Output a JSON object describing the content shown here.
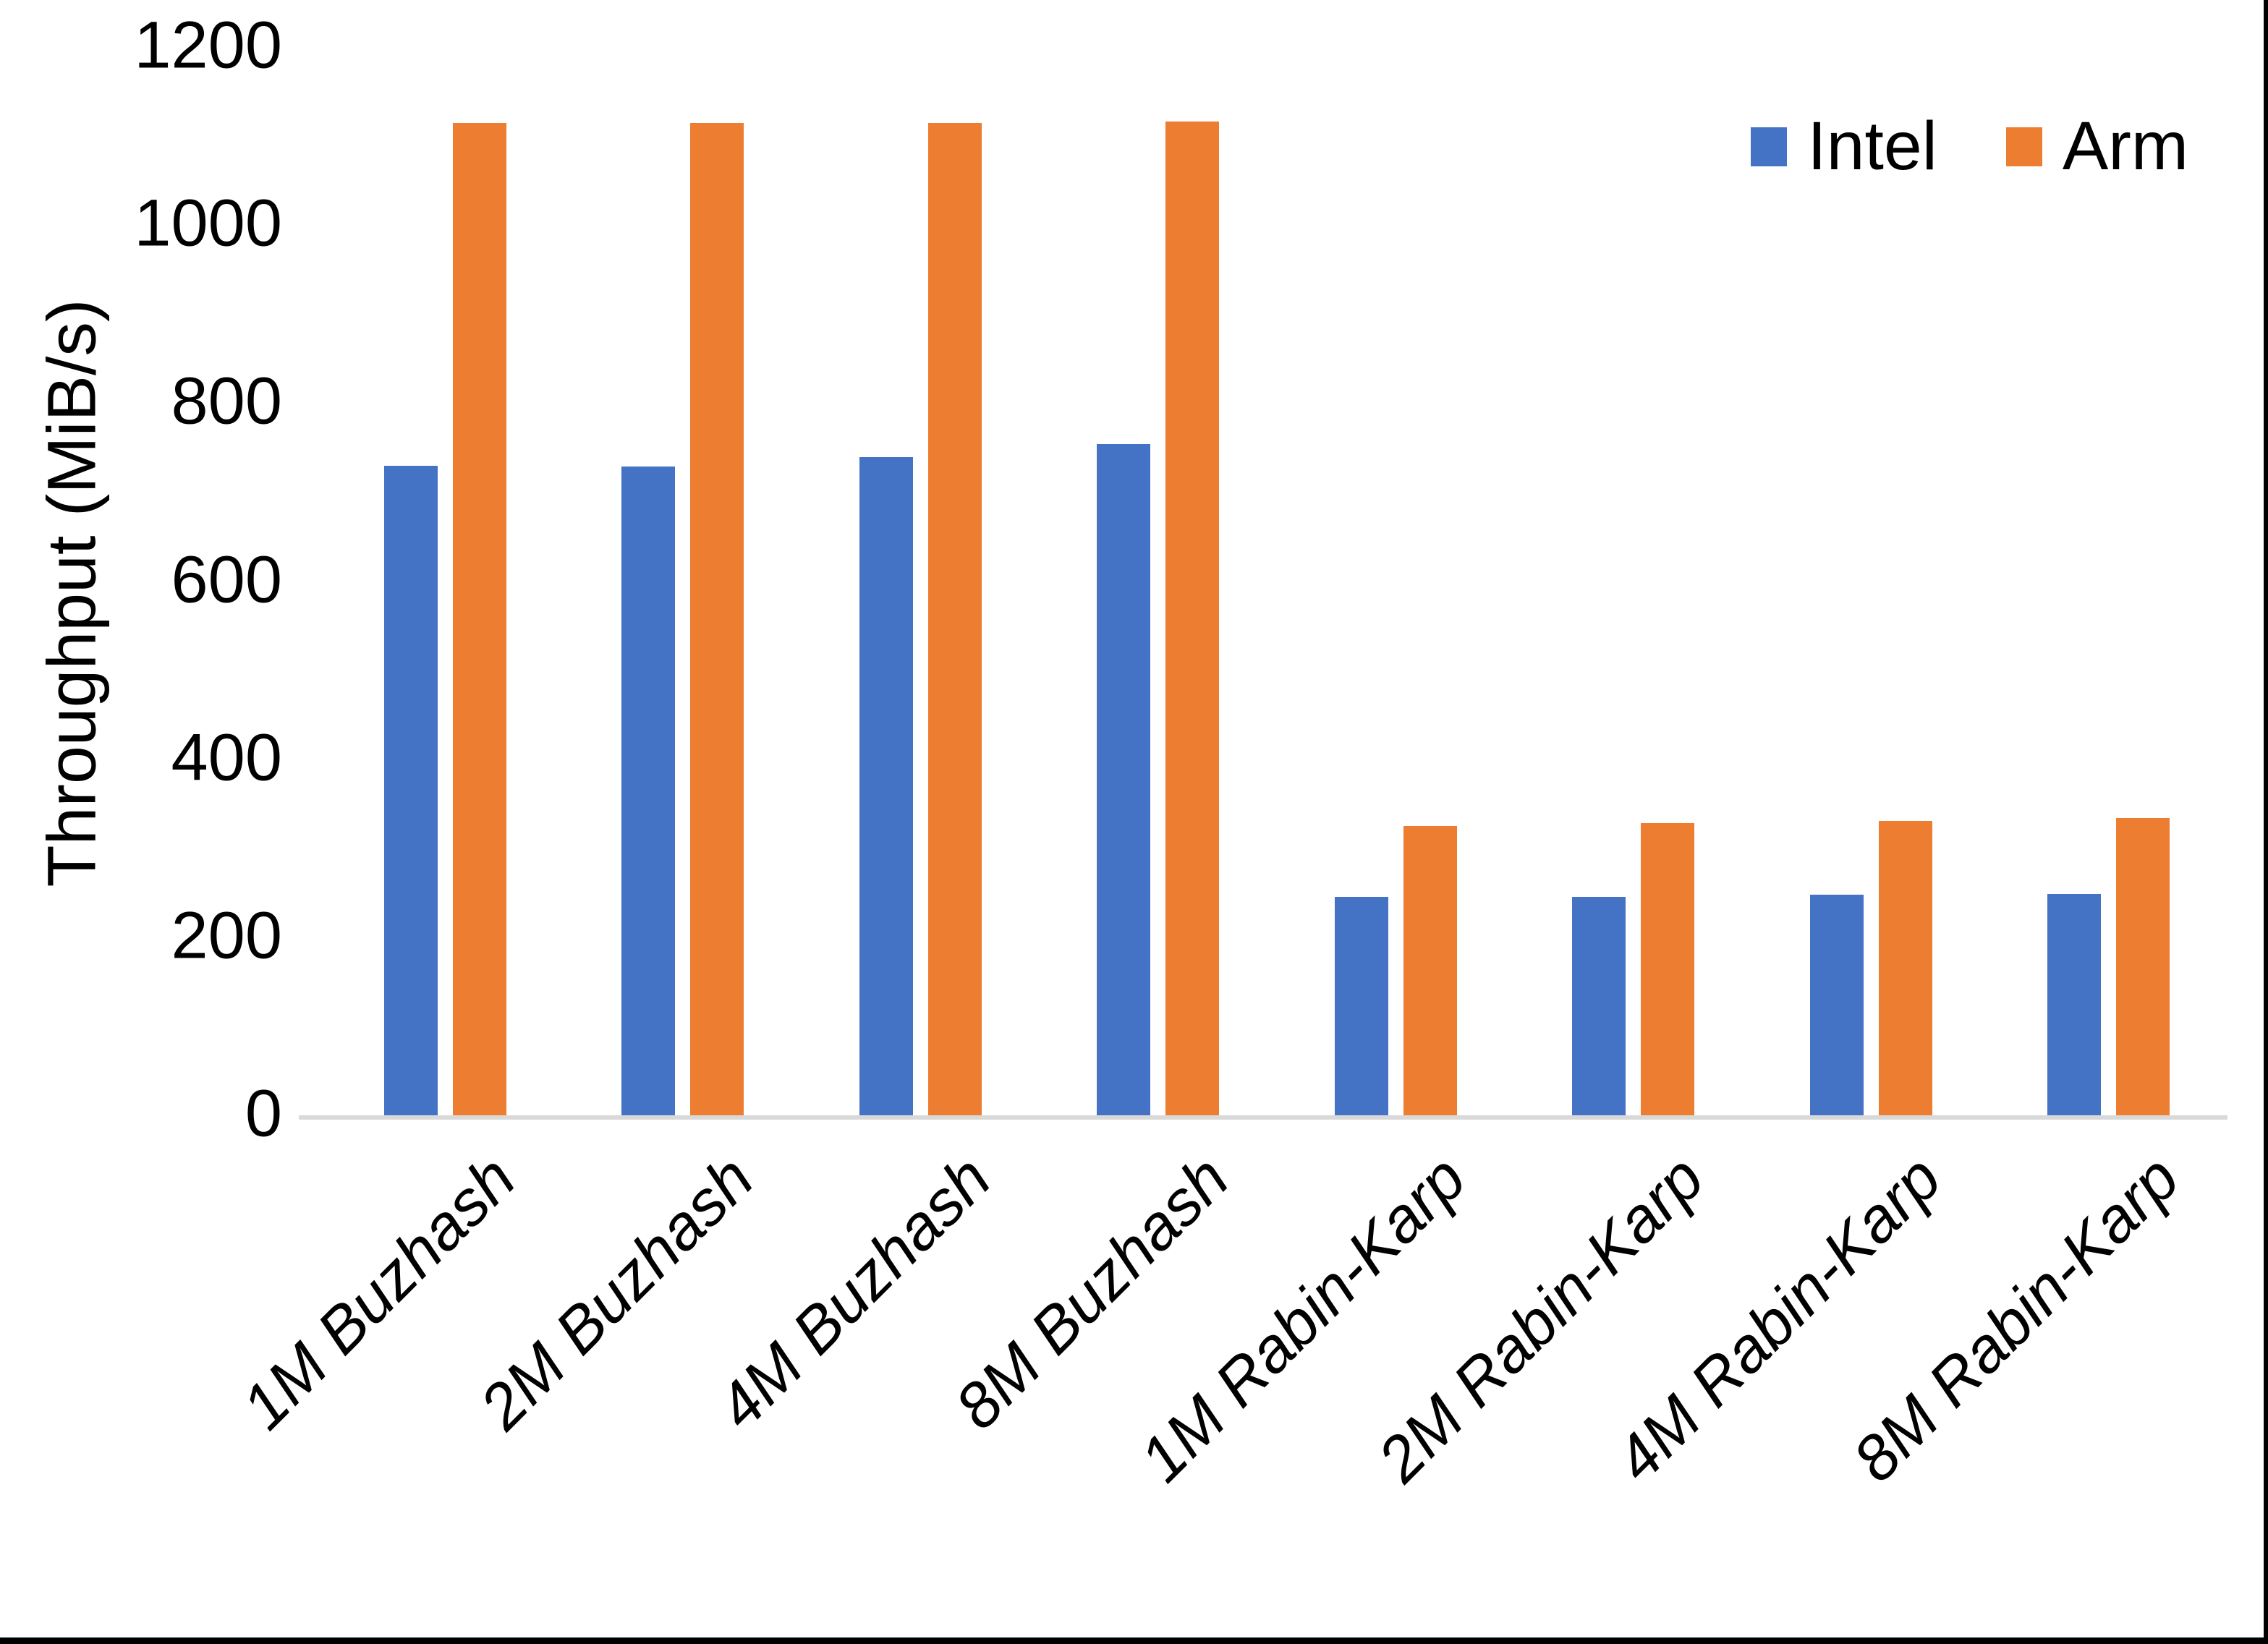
{
  "chart_data": {
    "type": "bar",
    "title": "",
    "categories": [
      "1M Buzhash",
      "2M Buzhash",
      "4M Buzhash",
      "8M Buzhash",
      "1M Rabin-Karp",
      "2M Rabin-Karp",
      "4M Rabin-Karp",
      "8M Rabin-Karp"
    ],
    "series": [
      {
        "name": "Intel",
        "color": "#4472C4",
        "values": [
          730,
          729,
          739,
          754,
          245,
          245,
          248,
          249
        ]
      },
      {
        "name": "Arm",
        "color": "#ED7D31",
        "values": [
          1115,
          1115,
          1115,
          1116,
          325,
          328,
          331,
          334
        ]
      }
    ],
    "xlabel": "",
    "ylabel": "Throughput (MiB/s)",
    "ylim": [
      0,
      1200
    ],
    "yticks": [
      0,
      200,
      400,
      600,
      800,
      1000,
      1200
    ],
    "grid": false,
    "legend_position": "top-right"
  },
  "colors": {
    "background": "#FFFFFF",
    "axis_line": "#D9D9D9",
    "text": "#000000",
    "frame_edge": "#000000",
    "intel": "#4472C4",
    "arm": "#ED7D31"
  }
}
